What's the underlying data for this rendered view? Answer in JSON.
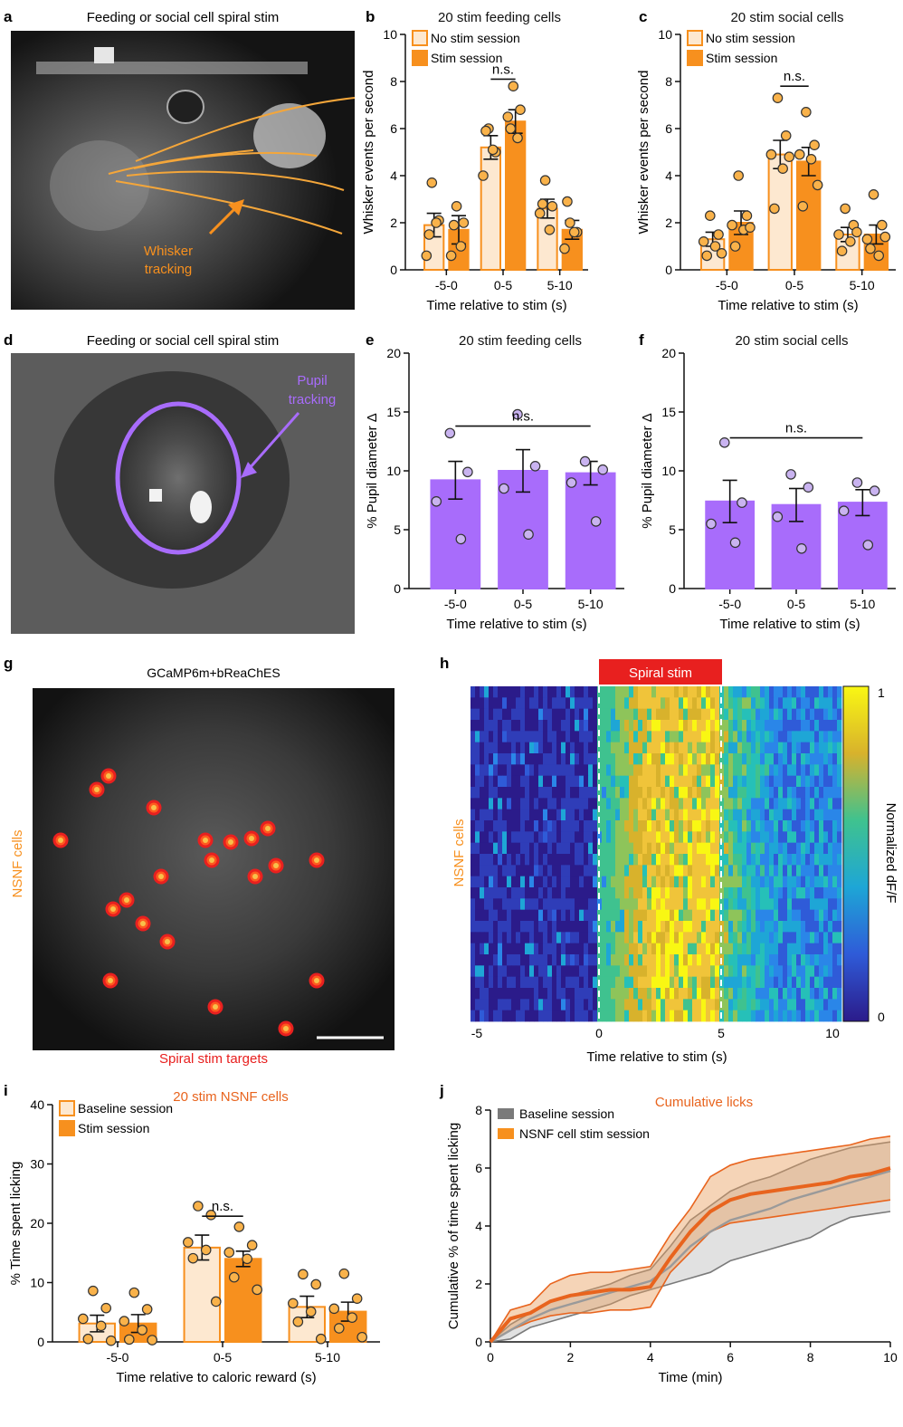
{
  "panels": {
    "a": {
      "letter": "a",
      "title": "Feeding or social cell spiral stim",
      "annotation_line1": "Whisker",
      "annotation_line2": "tracking"
    },
    "d": {
      "letter": "d",
      "title": "Feeding or social cell spiral stim",
      "annotation_line1": "Pupil",
      "annotation_line2": "tracking"
    },
    "g": {
      "letter": "g",
      "title": "GCaMP6m+bReaChES",
      "side_label": "NSNF cells",
      "bottom_label": "Spiral stim targets"
    },
    "h": {
      "letter": "h",
      "bar_label": "Spiral stim",
      "side_label": "NSNF cells",
      "colorbar_label": "Normalized dF/F",
      "colorbar_max": "1",
      "colorbar_min": "0",
      "xlabel": "Time relative to stim (s)",
      "xticks": [
        "-5",
        "0",
        "5",
        "10"
      ]
    }
  },
  "colors": {
    "light_orange": "#fde8d0",
    "orange": "#f7901e",
    "purple": "#a86cfb",
    "light_purple": "#c9b3f0",
    "stim_red": "#e8201f",
    "grey": "#7a7a7a",
    "dark_orange": "#e8641e",
    "label_orange": "#e98a1f"
  },
  "chart_data": [
    {
      "id": "b",
      "letter": "b",
      "type": "bar",
      "title": "20 stim feeding cells",
      "ylabel": "Whisker events per second",
      "xlabel": "Time relative to stim (s)",
      "categories": [
        "-5-0",
        "0-5",
        "5-10"
      ],
      "ylim": [
        0,
        10
      ],
      "yticks": [
        "0",
        "2",
        "4",
        "6",
        "8",
        "10"
      ],
      "legend": [
        "No stim session",
        "Stim session"
      ],
      "series": [
        {
          "name": "No stim session",
          "values": [
            1.9,
            5.2,
            2.6
          ],
          "sem": [
            0.5,
            0.5,
            0.4
          ],
          "points": [
            [
              3.7,
              2.1,
              0.6,
              2.0,
              1.5
            ],
            [
              6.0,
              5.0,
              4.0,
              5.1,
              5.9
            ]
          ]
        },
        {
          "name": "Stim session",
          "values": [
            1.7,
            6.3,
            1.7
          ],
          "sem": [
            0.6,
            0.5,
            0.4
          ],
          "points": [
            [
              2.7,
              2.0,
              0.6,
              1.0,
              1.9
            ],
            [
              7.8,
              6.8,
              6.5,
              5.6,
              6.0
            ],
            [
              2.0,
              1.6,
              0.9,
              1.6,
              2.9
            ]
          ]
        }
      ],
      "points_5_10_nostim": [
        3.8,
        2.7,
        2.4,
        1.7,
        2.8
      ],
      "significance": [
        {
          "label": "n.s.",
          "group": "0-5"
        }
      ]
    },
    {
      "id": "c",
      "letter": "c",
      "type": "bar",
      "title": "20 stim social cells",
      "ylabel": "Whisker events per second",
      "xlabel": "Time relative to stim (s)",
      "categories": [
        "-5-0",
        "0-5",
        "5-10"
      ],
      "ylim": [
        0,
        10
      ],
      "yticks": [
        "0",
        "2",
        "4",
        "6",
        "8",
        "10"
      ],
      "legend": [
        "No stim session",
        "Stim session"
      ],
      "series": [
        {
          "name": "No stim session",
          "values": [
            1.3,
            4.9,
            1.5
          ],
          "sem": [
            0.3,
            0.6,
            0.3
          ],
          "points": [
            [
              2.3,
              1.5,
              1.2,
              1.0,
              0.6,
              0.7
            ],
            [
              7.3,
              5.7,
              4.9,
              4.3,
              2.6,
              4.8
            ],
            [
              2.6,
              1.9,
              1.5,
              1.2,
              0.8,
              1.6
            ]
          ]
        },
        {
          "name": "Stim session",
          "values": [
            2.0,
            4.6,
            1.5
          ],
          "sem": [
            0.5,
            0.6,
            0.4
          ],
          "points": [
            [
              4.0,
              2.3,
              1.9,
              1.7,
              1.0,
              1.8
            ],
            [
              6.7,
              5.3,
              4.9,
              4.7,
              2.7,
              3.6
            ],
            [
              3.2,
              1.9,
              1.3,
              0.6,
              0.9,
              1.4
            ]
          ]
        }
      ],
      "significance": [
        {
          "label": "n.s.",
          "group": "0-5"
        }
      ]
    },
    {
      "id": "e",
      "letter": "e",
      "type": "bar",
      "title": "20 stim feeding cells",
      "ylabel": "% Pupil diameter Δ",
      "xlabel": "Time relative to stim (s)",
      "categories": [
        "-5-0",
        "0-5",
        "5-10"
      ],
      "ylim": [
        0,
        20
      ],
      "yticks": [
        "0",
        "5",
        "10",
        "15",
        "20"
      ],
      "series": [
        {
          "name": "",
          "values": [
            9.2,
            10.0,
            9.8
          ],
          "sem": [
            1.6,
            1.8,
            1.0
          ],
          "points": [
            [
              13.2,
              9.9,
              7.4,
              4.2
            ],
            [
              14.8,
              10.4,
              8.5,
              4.6
            ],
            [
              10.8,
              10.1,
              9.0,
              5.7
            ]
          ]
        }
      ],
      "significance": [
        {
          "label": "n.s.",
          "span": "all"
        }
      ]
    },
    {
      "id": "f",
      "letter": "f",
      "type": "bar",
      "title": "20 stim social cells",
      "ylabel": "% Pupil diameter Δ",
      "xlabel": "Time relative to stim (s)",
      "categories": [
        "-5-0",
        "0-5",
        "5-10"
      ],
      "ylim": [
        0,
        20
      ],
      "yticks": [
        "0",
        "5",
        "10",
        "15",
        "20"
      ],
      "series": [
        {
          "name": "",
          "values": [
            7.4,
            7.1,
            7.3
          ],
          "sem": [
            1.8,
            1.4,
            1.1
          ],
          "points": [
            [
              12.4,
              7.3,
              5.5,
              3.9
            ],
            [
              9.7,
              8.6,
              6.1,
              3.4
            ],
            [
              9.0,
              8.3,
              6.6,
              3.7
            ]
          ]
        }
      ],
      "significance": [
        {
          "label": "n.s.",
          "span": "all"
        }
      ]
    },
    {
      "id": "i",
      "letter": "i",
      "type": "bar",
      "title": "20 stim NSNF cells",
      "ylabel": "% Time spent licking",
      "xlabel": "Time relative to caloric reward (s)",
      "categories": [
        "-5-0",
        "0-5",
        "5-10"
      ],
      "ylim": [
        0,
        40
      ],
      "yticks": [
        "0",
        "10",
        "20",
        "30",
        "40"
      ],
      "legend": [
        "Baseline session",
        "Stim session"
      ],
      "series": [
        {
          "name": "Baseline session",
          "values": [
            3.1,
            15.9,
            5.9
          ],
          "sem": [
            1.4,
            2.1,
            1.8
          ],
          "points": [
            [
              8.6,
              5.7,
              3.9,
              2.7,
              0.5,
              0.2
            ],
            [
              22.9,
              21.4,
              16.8,
              15.5,
              14.1,
              6.8
            ],
            [
              11.4,
              9.7,
              6.5,
              5.1,
              3.4,
              0.5
            ]
          ]
        },
        {
          "name": "Stim session",
          "values": [
            3.1,
            14.0,
            5.1
          ],
          "sem": [
            1.5,
            1.3,
            1.6
          ],
          "points": [
            [
              8.3,
              5.5,
              3.5,
              2.0,
              0.4,
              0.3
            ],
            [
              19.4,
              16.3,
              15.1,
              14.0,
              10.9,
              8.8
            ],
            [
              11.5,
              7.3,
              5.6,
              4.1,
              2.3,
              0.8
            ]
          ]
        }
      ],
      "significance": [
        {
          "label": "n.s.",
          "group": "0-5"
        }
      ]
    },
    {
      "id": "j",
      "letter": "j",
      "type": "line",
      "title": "Cumulative licks",
      "ylabel": "Cumulative % of time spent licking",
      "xlabel": "Time (min)",
      "xlim": [
        0,
        10
      ],
      "ylim": [
        0,
        8
      ],
      "xticks": [
        "0",
        "2",
        "4",
        "6",
        "8",
        "10"
      ],
      "yticks": [
        "0",
        "2",
        "4",
        "6",
        "8"
      ],
      "legend": [
        "Baseline session",
        "NSNF cell stim session"
      ],
      "series": [
        {
          "name": "Baseline session",
          "x": [
            0,
            0.5,
            1,
            1.5,
            2,
            2.5,
            3,
            3.5,
            4,
            4.5,
            5,
            5.5,
            6,
            6.5,
            7,
            7.5,
            8,
            8.5,
            9,
            9.5,
            10
          ],
          "mean": [
            0,
            0.4,
            0.8,
            1.1,
            1.3,
            1.5,
            1.7,
            1.9,
            2.1,
            2.6,
            3.3,
            3.8,
            4.2,
            4.4,
            4.6,
            4.9,
            5.1,
            5.3,
            5.5,
            5.7,
            5.9
          ],
          "upper": [
            0,
            0.6,
            1.0,
            1.4,
            1.6,
            1.8,
            2.0,
            2.3,
            2.5,
            3.3,
            4.2,
            4.7,
            5.2,
            5.5,
            5.7,
            6.0,
            6.3,
            6.5,
            6.7,
            6.8,
            6.9
          ],
          "lower": [
            0,
            0.1,
            0.5,
            0.7,
            0.9,
            1.1,
            1.3,
            1.6,
            1.8,
            2.0,
            2.2,
            2.4,
            2.8,
            3.0,
            3.2,
            3.4,
            3.6,
            4.0,
            4.3,
            4.4,
            4.5
          ]
        },
        {
          "name": "NSNF cell stim session",
          "x": [
            0,
            0.5,
            1,
            1.5,
            2,
            2.5,
            3,
            3.5,
            4,
            4.5,
            5,
            5.5,
            6,
            6.5,
            7,
            7.5,
            8,
            8.5,
            9,
            9.5,
            10
          ],
          "mean": [
            0,
            0.8,
            1.0,
            1.4,
            1.6,
            1.7,
            1.8,
            1.8,
            1.9,
            2.9,
            3.8,
            4.5,
            4.9,
            5.1,
            5.2,
            5.3,
            5.4,
            5.5,
            5.7,
            5.8,
            6.0
          ],
          "upper": [
            0,
            1.1,
            1.3,
            2.0,
            2.3,
            2.4,
            2.4,
            2.5,
            2.6,
            3.7,
            4.6,
            5.7,
            6.1,
            6.3,
            6.4,
            6.5,
            6.6,
            6.7,
            6.8,
            7.0,
            7.1
          ],
          "lower": [
            0,
            0.4,
            0.7,
            0.9,
            1.0,
            1.0,
            1.1,
            1.1,
            1.2,
            2.4,
            3.1,
            3.8,
            4.1,
            4.2,
            4.3,
            4.4,
            4.5,
            4.6,
            4.7,
            4.8,
            4.9
          ]
        }
      ]
    }
  ]
}
